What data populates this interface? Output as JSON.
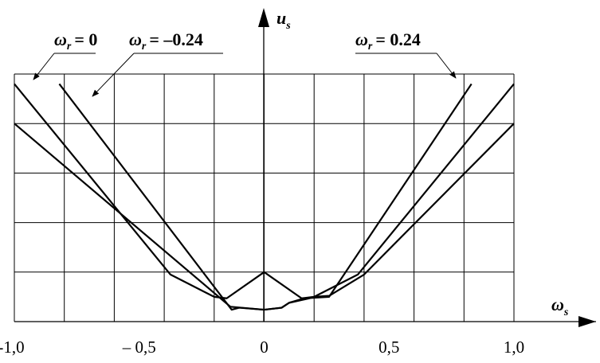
{
  "chart_data": {
    "type": "line",
    "title": "",
    "xlabel": {
      "symbol": "ω",
      "subscript": "s"
    },
    "ylabel": {
      "symbol": "u",
      "subscript": "s"
    },
    "xlim": [
      -1.0,
      1.0
    ],
    "ylim": [
      0,
      5
    ],
    "grid": true,
    "x_tick_labels": [
      "-1,0",
      "– 0,5",
      "0",
      "0,5",
      "1,0"
    ],
    "x_ticks": [
      -1.0,
      -0.5,
      0,
      0.5,
      1.0
    ],
    "series": [
      {
        "label": {
          "symbol": "ω",
          "subscript": "r",
          "value": "= 0"
        },
        "points": [
          [
            -1.0,
            4.8
          ],
          [
            -0.375,
            0.95
          ],
          [
            -0.2,
            0.5
          ],
          [
            -0.15,
            0.47
          ],
          [
            0,
            1.0
          ],
          [
            0.15,
            0.47
          ],
          [
            0.2,
            0.5
          ],
          [
            0.375,
            0.95
          ],
          [
            1.0,
            4.8
          ]
        ]
      },
      {
        "label": {
          "symbol": "ω",
          "subscript": "r",
          "value": "= –0.24"
        },
        "points": [
          [
            -1.0,
            4.0
          ],
          [
            -0.135,
            0.3
          ],
          [
            -0.09,
            0.28
          ],
          [
            0.0,
            0.24
          ],
          [
            0.07,
            0.28
          ],
          [
            0.1,
            0.38
          ],
          [
            0.18,
            0.47
          ],
          [
            0.2,
            0.5
          ],
          [
            0.26,
            0.52
          ],
          [
            0.4,
            0.95
          ],
          [
            1.0,
            4.0
          ]
        ]
      },
      {
        "label": {
          "symbol": "ω",
          "subscript": "r",
          "value": "= 0.24"
        },
        "points": [
          [
            -0.82,
            4.8
          ],
          [
            -0.13,
            0.24
          ],
          [
            -0.1,
            0.28
          ],
          [
            0.0,
            0.24
          ],
          [
            0.07,
            0.28
          ],
          [
            0.1,
            0.38
          ],
          [
            0.16,
            0.47
          ],
          [
            0.26,
            0.5
          ],
          [
            0.83,
            4.8
          ]
        ]
      }
    ]
  }
}
